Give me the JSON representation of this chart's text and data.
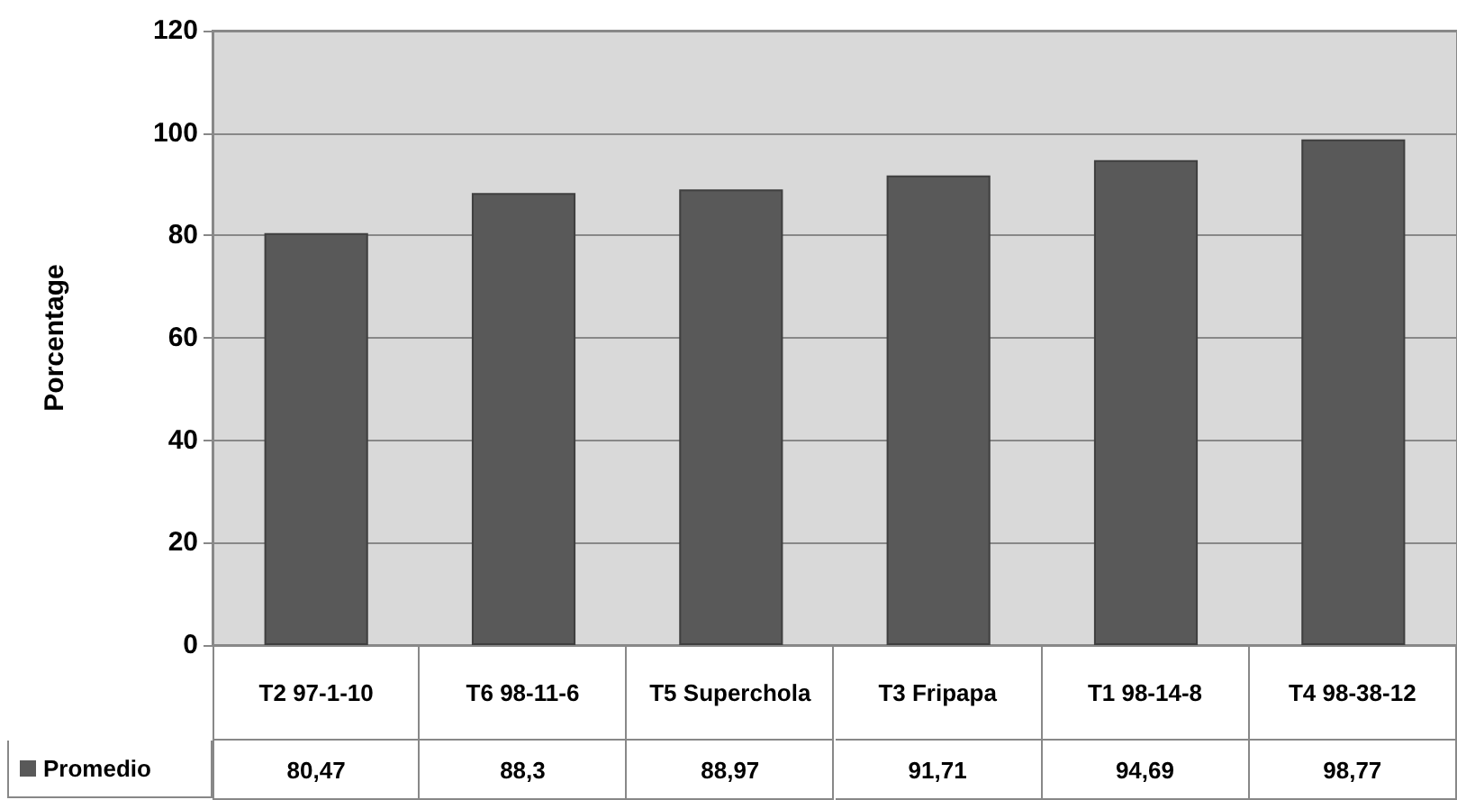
{
  "chart_data": {
    "type": "bar",
    "ylabel": "Porcentage",
    "categories": [
      "T2 97-1-10",
      "T6 98-11-6",
      "T5 Superchola",
      "T3 Fripapa",
      "T1 98-14-8",
      "T4 98-38-12"
    ],
    "series": [
      {
        "name": "Promedio",
        "color": "#595959",
        "values": [
          80.47,
          88.3,
          88.97,
          91.71,
          94.69,
          98.77
        ],
        "value_labels": [
          "80,47",
          "88,3",
          "88,97",
          "91,71",
          "94,69",
          "98,77"
        ]
      }
    ],
    "ylim": [
      0,
      120
    ],
    "yticks": [
      0,
      20,
      40,
      60,
      80,
      100,
      120
    ],
    "grid": "y",
    "legend": "bottom left"
  }
}
